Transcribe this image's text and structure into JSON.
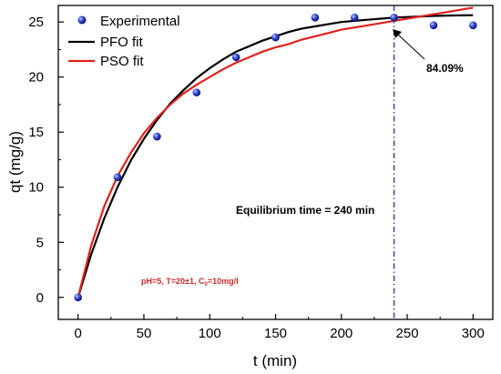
{
  "chart_data": {
    "type": "scatter",
    "xlabel": "t (min)",
    "ylabel": "qt (mg/g)",
    "xlim": [
      -15,
      315
    ],
    "ylim": [
      -2,
      26.5
    ],
    "xticks": [
      0,
      50,
      100,
      150,
      200,
      250,
      300
    ],
    "yticks": [
      0,
      5,
      10,
      15,
      20,
      25
    ],
    "grid": false,
    "legend": "top-left",
    "series": [
      {
        "name": "Experimental",
        "kind": "points",
        "color": "#2438c8",
        "x": [
          0,
          30,
          60,
          90,
          120,
          150,
          180,
          210,
          240,
          270,
          300
        ],
        "y": [
          0,
          10.9,
          14.6,
          18.6,
          21.8,
          23.6,
          25.4,
          25.4,
          25.4,
          24.7,
          24.7
        ]
      },
      {
        "name": "PFO fit",
        "kind": "line",
        "color": "#000000",
        "x": [
          0,
          10,
          20,
          30,
          40,
          50,
          60,
          70,
          80,
          90,
          100,
          110,
          120,
          130,
          140,
          150,
          160,
          170,
          180,
          190,
          200,
          210,
          220,
          230,
          240,
          250,
          260,
          270,
          280,
          290,
          300
        ],
        "y": [
          0,
          3.9,
          7.2,
          10.0,
          12.4,
          14.4,
          16.1,
          17.6,
          18.8,
          19.9,
          20.8,
          21.6,
          22.3,
          22.8,
          23.3,
          23.7,
          24.1,
          24.4,
          24.6,
          24.8,
          25.0,
          25.1,
          25.2,
          25.3,
          25.4,
          25.45,
          25.5,
          25.55,
          25.58,
          25.6,
          25.62
        ]
      },
      {
        "name": "PSO fit",
        "kind": "line",
        "color": "#e0201c",
        "x": [
          0,
          10,
          20,
          30,
          40,
          50,
          60,
          70,
          80,
          90,
          100,
          110,
          120,
          130,
          140,
          150,
          160,
          170,
          180,
          190,
          200,
          210,
          220,
          230,
          240,
          250,
          260,
          270,
          280,
          290,
          300
        ],
        "y": [
          0,
          4.7,
          8.3,
          11.0,
          13.1,
          14.9,
          16.3,
          17.5,
          18.5,
          19.3,
          20.0,
          20.7,
          21.3,
          21.8,
          22.3,
          22.7,
          23.0,
          23.4,
          23.7,
          24.0,
          24.3,
          24.5,
          24.7,
          24.9,
          25.1,
          25.3,
          25.5,
          25.7,
          25.9,
          26.1,
          26.3
        ]
      }
    ],
    "vline": {
      "x": 240,
      "color": "#2b2b9e"
    },
    "annotations": {
      "equilibrium": "Equilibrium time = 240 min",
      "percent": "84.09%",
      "conditions": "pH=5, T=20±1, C",
      "conditions_sub": "0",
      "conditions_end": "=10mg/l"
    }
  }
}
